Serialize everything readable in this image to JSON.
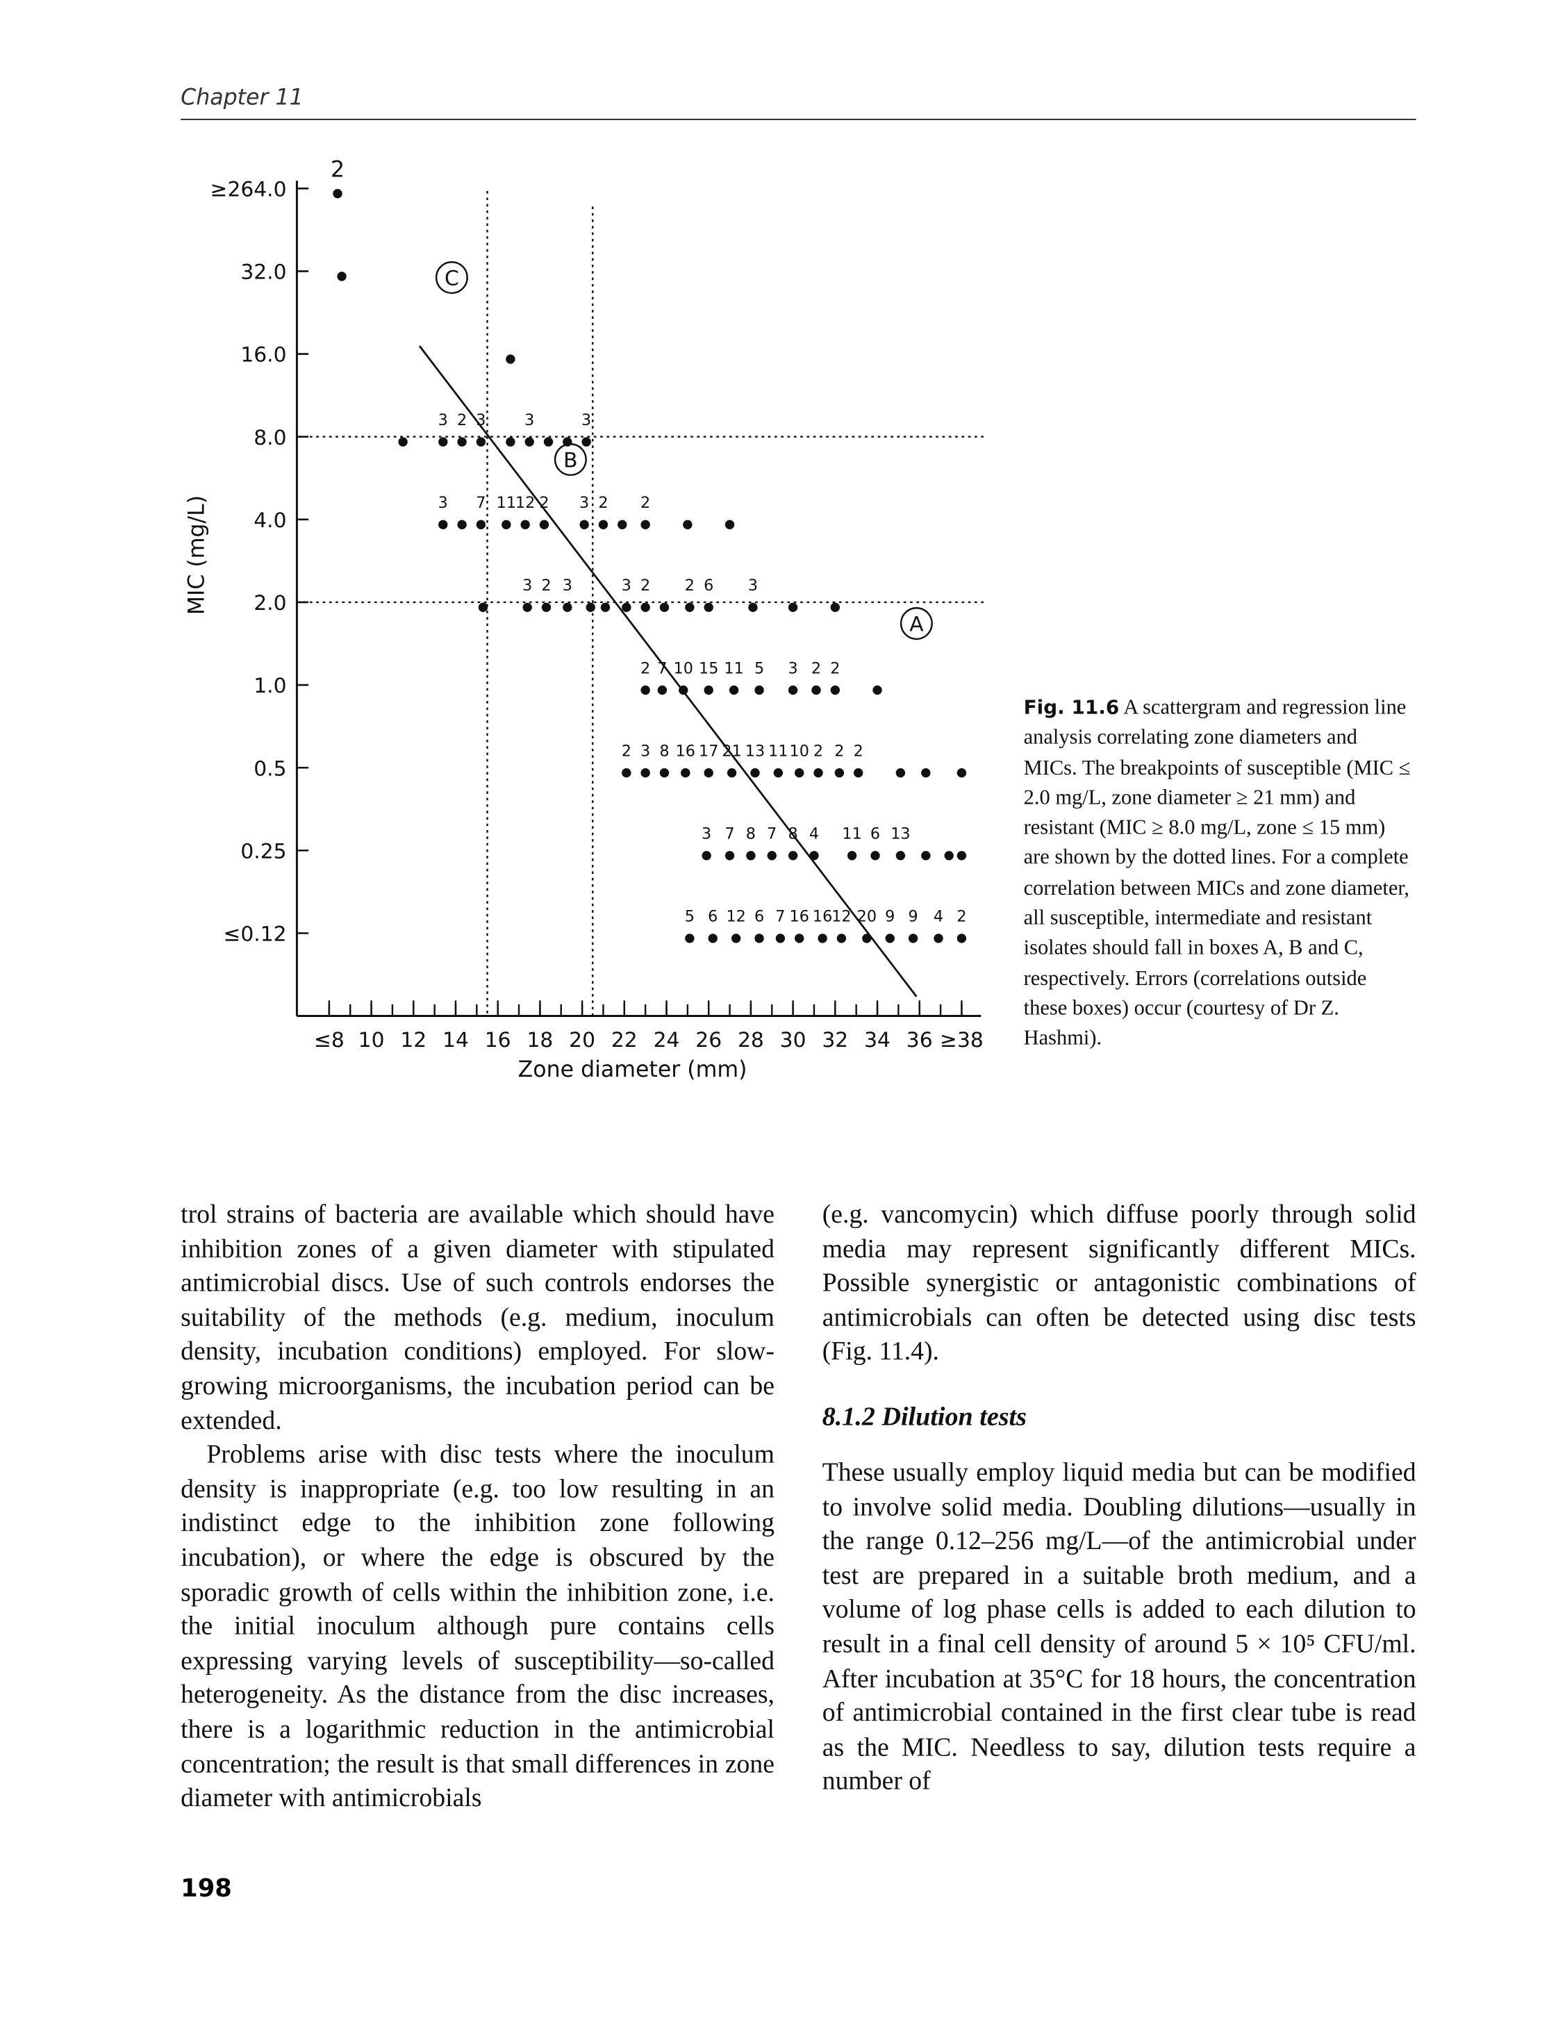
{
  "header": {
    "chapter": "Chapter 11"
  },
  "figure": {
    "type": "scatter",
    "y_title": "MIC (mg/L)",
    "x_title": "Zone diameter (mm)",
    "y_categories": [
      "≥264.0",
      "32.0",
      "16.0",
      "8.0",
      "4.0",
      "2.0",
      "1.0",
      "0.5",
      "0.25",
      "≤0.12"
    ],
    "xlim": [
      8,
      38
    ],
    "xticks": [
      {
        "value": 8,
        "label": "≤8"
      },
      10,
      12,
      14,
      16,
      18,
      20,
      22,
      24,
      26,
      28,
      30,
      32,
      34,
      36,
      {
        "value": 38,
        "label": "≥38"
      }
    ],
    "breakpoints_x": [
      15.5,
      20.5
    ],
    "box_labels": [
      "A",
      "B",
      "C"
    ],
    "rows": [
      {
        "points": [
          {
            "x": 8.4,
            "n": 2
          }
        ]
      },
      {
        "points": [
          {
            "x": 8.6
          }
        ]
      },
      {
        "points": [
          {
            "x": 16.6
          }
        ]
      },
      {
        "points": [
          {
            "x": 11.5
          },
          {
            "x": 13.4,
            "n": 3
          },
          {
            "x": 14.3,
            "n": 2
          },
          {
            "x": 15.2,
            "n": 3
          },
          {
            "x": 16.6
          },
          {
            "x": 17.5,
            "n": 3
          },
          {
            "x": 18.4
          },
          {
            "x": 19.3
          },
          {
            "x": 20.2,
            "n": 3
          }
        ]
      },
      {
        "points": [
          {
            "x": 13.4,
            "n": 3
          },
          {
            "x": 14.3
          },
          {
            "x": 15.2,
            "n": 7
          },
          {
            "x": 16.4,
            "n": 11
          },
          {
            "x": 17.3,
            "n": 12
          },
          {
            "x": 18.2,
            "n": 2
          },
          {
            "x": 20.1,
            "n": 3
          },
          {
            "x": 21.0,
            "n": 2
          },
          {
            "x": 21.9
          },
          {
            "x": 23.0,
            "n": 2
          },
          {
            "x": 25.0
          },
          {
            "x": 27.0
          }
        ]
      },
      {
        "points": [
          {
            "x": 15.3
          },
          {
            "x": 17.4,
            "n": 3
          },
          {
            "x": 18.3,
            "n": 2
          },
          {
            "x": 19.3,
            "n": 3
          },
          {
            "x": 20.4
          },
          {
            "x": 21.1
          },
          {
            "x": 22.1,
            "n": 3
          },
          {
            "x": 23.0,
            "n": 2
          },
          {
            "x": 23.9
          },
          {
            "x": 25.1,
            "n": 2
          },
          {
            "x": 26.0,
            "n": 6
          },
          {
            "x": 28.1,
            "n": 3
          },
          {
            "x": 30.0
          },
          {
            "x": 32.0
          }
        ]
      },
      {
        "points": [
          {
            "x": 23.0,
            "n": 2
          },
          {
            "x": 23.8,
            "n": 7
          },
          {
            "x": 24.8,
            "n": 10
          },
          {
            "x": 26.0,
            "n": 15
          },
          {
            "x": 27.2,
            "n": 11
          },
          {
            "x": 28.4,
            "n": 5
          },
          {
            "x": 30.0,
            "n": 3
          },
          {
            "x": 31.1,
            "n": 2
          },
          {
            "x": 32.0,
            "n": 2
          },
          {
            "x": 34.0
          }
        ]
      },
      {
        "points": [
          {
            "x": 22.1,
            "n": 2
          },
          {
            "x": 23.0,
            "n": 3
          },
          {
            "x": 23.9,
            "n": 8
          },
          {
            "x": 24.9,
            "n": 16
          },
          {
            "x": 26.0,
            "n": 17
          },
          {
            "x": 27.1,
            "n": 21
          },
          {
            "x": 28.2,
            "n": 13
          },
          {
            "x": 29.3,
            "n": 11
          },
          {
            "x": 30.3,
            "n": 10
          },
          {
            "x": 31.2,
            "n": 2
          },
          {
            "x": 32.2,
            "n": 2
          },
          {
            "x": 33.1,
            "n": 2
          },
          {
            "x": 35.1
          },
          {
            "x": 36.3
          },
          {
            "x": 38.0
          }
        ]
      },
      {
        "points": [
          {
            "x": 25.9,
            "n": 3
          },
          {
            "x": 27.0,
            "n": 7
          },
          {
            "x": 28.0,
            "n": 8
          },
          {
            "x": 29.0,
            "n": 7
          },
          {
            "x": 30.0,
            "n": 8
          },
          {
            "x": 31.0,
            "n": 4
          },
          {
            "x": 32.8,
            "n": 11
          },
          {
            "x": 33.9,
            "n": 6
          },
          {
            "x": 35.1,
            "n": 13
          },
          {
            "x": 36.3
          },
          {
            "x": 37.4
          },
          {
            "x": 38.0
          }
        ]
      },
      {
        "points": [
          {
            "x": 25.1,
            "n": 5
          },
          {
            "x": 26.2,
            "n": 6
          },
          {
            "x": 27.3,
            "n": 12
          },
          {
            "x": 28.4,
            "n": 6
          },
          {
            "x": 29.4,
            "n": 7
          },
          {
            "x": 30.3,
            "n": 16
          },
          {
            "x": 31.4,
            "n": 16
          },
          {
            "x": 32.3,
            "n": 12
          },
          {
            "x": 33.5,
            "n": 20
          },
          {
            "x": 34.6,
            "n": 9
          },
          {
            "x": 35.7,
            "n": 9
          },
          {
            "x": 36.9,
            "n": 4
          },
          {
            "x": 38.0,
            "n": 2
          }
        ]
      }
    ]
  },
  "caption": {
    "label": "Fig. 11.6",
    "text": "A scattergram and regression line analysis correlating zone diameters and MICs. The breakpoints of susceptible (MIC ≤ 2.0 mg/L, zone diameter ≥ 21 mm) and resistant (MIC ≥ 8.0 mg/L, zone ≤ 15 mm) are shown by the dotted lines. For a complete correlation between MICs and zone diameter, all susceptible, intermediate and resistant isolates should fall in boxes A, B and C, respectively. Errors (correlations outside these boxes) occur (courtesy of Dr Z. Hashmi)."
  },
  "body": {
    "left": [
      "trol strains of bacteria are available which should have inhibition zones of a given diameter with stipulated antimicrobial discs. Use of such controls endorses the suitability of the methods (e.g. medium, inoculum density, incubation conditions) employed. For slow-growing microorganisms, the incubation period can be extended.",
      "Problems arise with disc tests where the inoculum density is inappropriate (e.g. too low resulting in an indistinct edge to the inhibition zone following incubation), or where the edge is obscured by the sporadic growth of cells within the inhibition zone, i.e. the initial inoculum although pure contains cells expressing varying levels of susceptibility—so-called heterogeneity. As the distance from the disc increases, there is a logarithmic reduction in the antimicrobial concentration; the result is that small differences in zone diameter with antimicrobials"
    ],
    "right_top": "(e.g. vancomycin) which diffuse poorly through solid media may represent significantly different MICs. Possible synergistic or antagonistic combinations of antimicrobials can often be detected using disc tests (Fig. 11.4).",
    "heading": "8.1.2 Dilution tests",
    "right_bottom": "These usually employ liquid media but can be modified to involve solid media. Doubling dilutions—usually in the range 0.12–256 mg/L—of the antimicrobial under test are prepared in a suitable broth medium, and a volume of log phase cells is added to each dilution to result in a final cell density of around 5 × 10⁵ CFU/ml. After incubation at 35°C for 18 hours, the concentration of antimicrobial contained in the first clear tube is read as the MIC. Needless to say, dilution tests require a number of"
  },
  "page_number": "198"
}
